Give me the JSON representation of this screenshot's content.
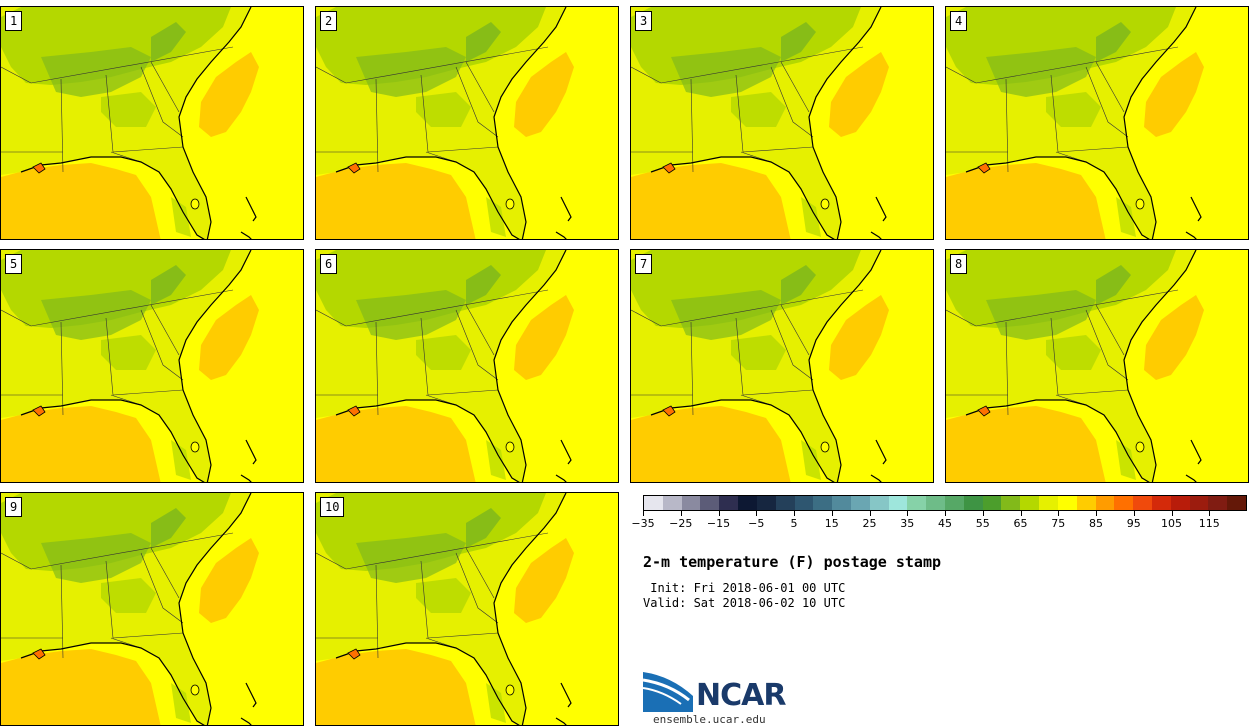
{
  "members": [
    {
      "label": "1"
    },
    {
      "label": "2"
    },
    {
      "label": "3"
    },
    {
      "label": "4"
    },
    {
      "label": "5"
    },
    {
      "label": "6"
    },
    {
      "label": "7"
    },
    {
      "label": "8"
    },
    {
      "label": "9"
    },
    {
      "label": "10"
    }
  ],
  "colorbar": {
    "min": -35,
    "max": 125,
    "step": 5,
    "tick_labels": [
      "−35",
      "−25",
      "−15",
      "−5",
      "5",
      "15",
      "25",
      "35",
      "45",
      "55",
      "65",
      "75",
      "85",
      "95",
      "105",
      "115"
    ],
    "colors": [
      "#e6e6ee",
      "#b8b8c8",
      "#8a8aa0",
      "#5c5c78",
      "#2e2e50",
      "#0d1833",
      "#162640",
      "#24405a",
      "#2e5670",
      "#3c6e84",
      "#528a9c",
      "#6aa6b2",
      "#86c6c6",
      "#9ee6dc",
      "#86d2a8",
      "#6ebc88",
      "#56a866",
      "#3e9444",
      "#4c9e2c",
      "#82ba1a",
      "#b4d800",
      "#e6f000",
      "#ffff00",
      "#ffcc00",
      "#ff9c00",
      "#ff7000",
      "#f04a0c",
      "#d42a0a",
      "#b81c0a",
      "#9c1c0e",
      "#801c12",
      "#641808"
    ]
  },
  "title": "2-m temperature (F) postage stamp",
  "init_line": " Init: Fri 2018-06-01 00 UTC",
  "valid_line": "Valid: Sat 2018-06-02 10 UTC",
  "logo": {
    "text": "NCAR",
    "url": "ensemble.ucar.edu"
  }
}
